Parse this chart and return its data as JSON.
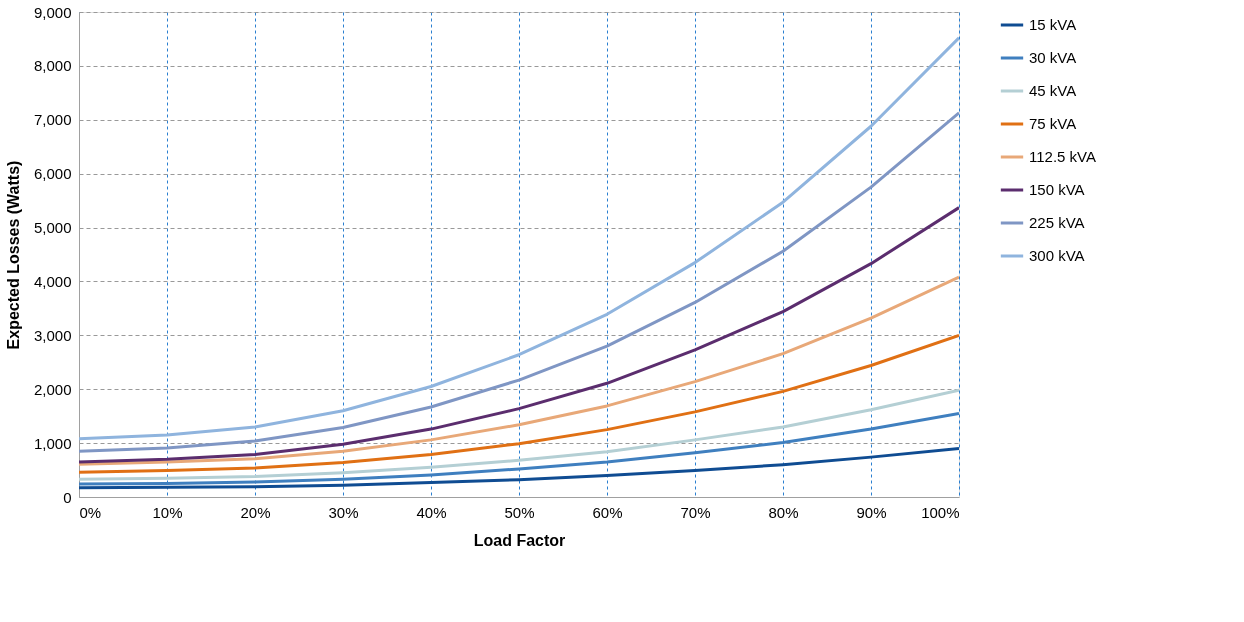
{
  "chart_data": {
    "type": "line",
    "xlabel": "Load Factor",
    "ylabel": "Expected Losses (Watts)",
    "x": [
      0,
      10,
      20,
      30,
      40,
      50,
      60,
      70,
      80,
      90,
      100
    ],
    "xlim": [
      0,
      100
    ],
    "xticks": [
      {
        "value": 0,
        "label": "0%"
      },
      {
        "value": 10,
        "label": "10%"
      },
      {
        "value": 20,
        "label": "20%"
      },
      {
        "value": 30,
        "label": "30%"
      },
      {
        "value": 40,
        "label": "40%"
      },
      {
        "value": 50,
        "label": "50%"
      },
      {
        "value": 60,
        "label": "60%"
      },
      {
        "value": 70,
        "label": "70%"
      },
      {
        "value": 80,
        "label": "80%"
      },
      {
        "value": 90,
        "label": "90%"
      },
      {
        "value": 100,
        "label": "100%"
      }
    ],
    "ylim": [
      0,
      9000
    ],
    "yticks": [
      {
        "value": 0,
        "label": "0"
      },
      {
        "value": 1000,
        "label": "1,000"
      },
      {
        "value": 2000,
        "label": "2,000"
      },
      {
        "value": 3000,
        "label": "3,000"
      },
      {
        "value": 4000,
        "label": "4,000"
      },
      {
        "value": 5000,
        "label": "5,000"
      },
      {
        "value": 6000,
        "label": "6,000"
      },
      {
        "value": 7000,
        "label": "7,000"
      },
      {
        "value": 8000,
        "label": "8,000"
      },
      {
        "value": 9000,
        "label": "9,000"
      }
    ],
    "grid": true,
    "legend": "right",
    "marker": "none",
    "line_style": "solid",
    "series": [
      {
        "name": "15 kVA",
        "color": "#0f4c92",
        "values": [
          170,
          180,
          190,
          220,
          270,
          320,
          400,
          490,
          600,
          740,
          900
        ]
      },
      {
        "name": "30 kVA",
        "color": "#3f7fbf",
        "values": [
          240,
          250,
          280,
          330,
          410,
          520,
          650,
          820,
          1010,
          1260,
          1550
        ]
      },
      {
        "name": "45 kVA",
        "color": "#b4cfd4",
        "values": [
          330,
          350,
          380,
          450,
          550,
          680,
          840,
          1060,
          1300,
          1620,
          1980
        ]
      },
      {
        "name": "75 kVA",
        "color": "#e07014",
        "values": [
          460,
          490,
          540,
          640,
          790,
          990,
          1250,
          1580,
          1960,
          2440,
          3000
        ]
      },
      {
        "name": "112.5 kVA",
        "color": "#e8a878",
        "values": [
          610,
          650,
          710,
          850,
          1060,
          1340,
          1690,
          2140,
          2660,
          3320,
          4080
        ]
      },
      {
        "name": "150 kVA",
        "color": "#5b2d6e",
        "values": [
          650,
          700,
          790,
          980,
          1260,
          1640,
          2110,
          2730,
          3440,
          4330,
          5370
        ]
      },
      {
        "name": "225 kVA",
        "color": "#7f96c4",
        "values": [
          850,
          910,
          1040,
          1290,
          1670,
          2170,
          2800,
          3610,
          4560,
          5750,
          7130
        ]
      },
      {
        "name": "300 kVA",
        "color": "#8fb4de",
        "values": [
          1080,
          1150,
          1300,
          1600,
          2050,
          2640,
          3390,
          4350,
          5470,
          6880,
          8520
        ]
      }
    ]
  }
}
